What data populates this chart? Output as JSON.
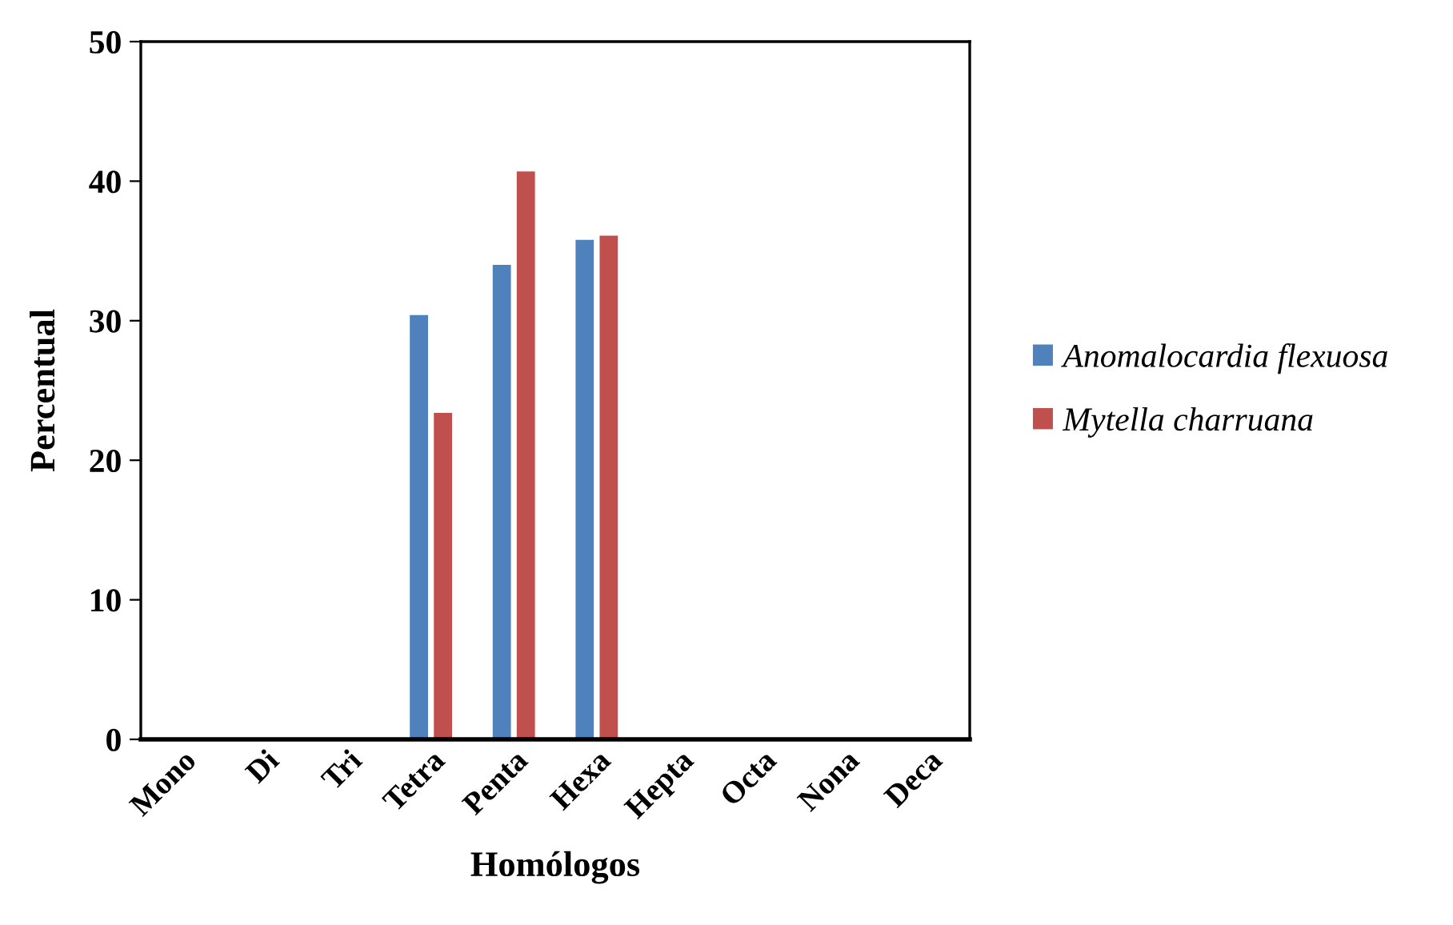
{
  "chart_data": {
    "type": "bar",
    "xlabel": "Homólogos",
    "ylabel": "Percentual",
    "categories": [
      "Mono",
      "Di",
      "Tri",
      "Tetra",
      "Penta",
      "Hexa",
      "Hepta",
      "Octa",
      "Nona",
      "Deca"
    ],
    "series": [
      {
        "name": "Anomalocardia flexuosa",
        "color": "#4f81bd",
        "values": [
          0,
          0,
          0,
          30.4,
          34.0,
          35.8,
          0,
          0,
          0,
          0
        ]
      },
      {
        "name": "Mytella charruana",
        "color": "#c0504d",
        "values": [
          0,
          0,
          0,
          23.4,
          40.7,
          36.1,
          0,
          0,
          0,
          0
        ]
      }
    ],
    "ylim": [
      0,
      50
    ],
    "yticks": [
      0,
      10,
      20,
      30,
      40,
      50
    ],
    "grid": false,
    "legend": "right"
  }
}
